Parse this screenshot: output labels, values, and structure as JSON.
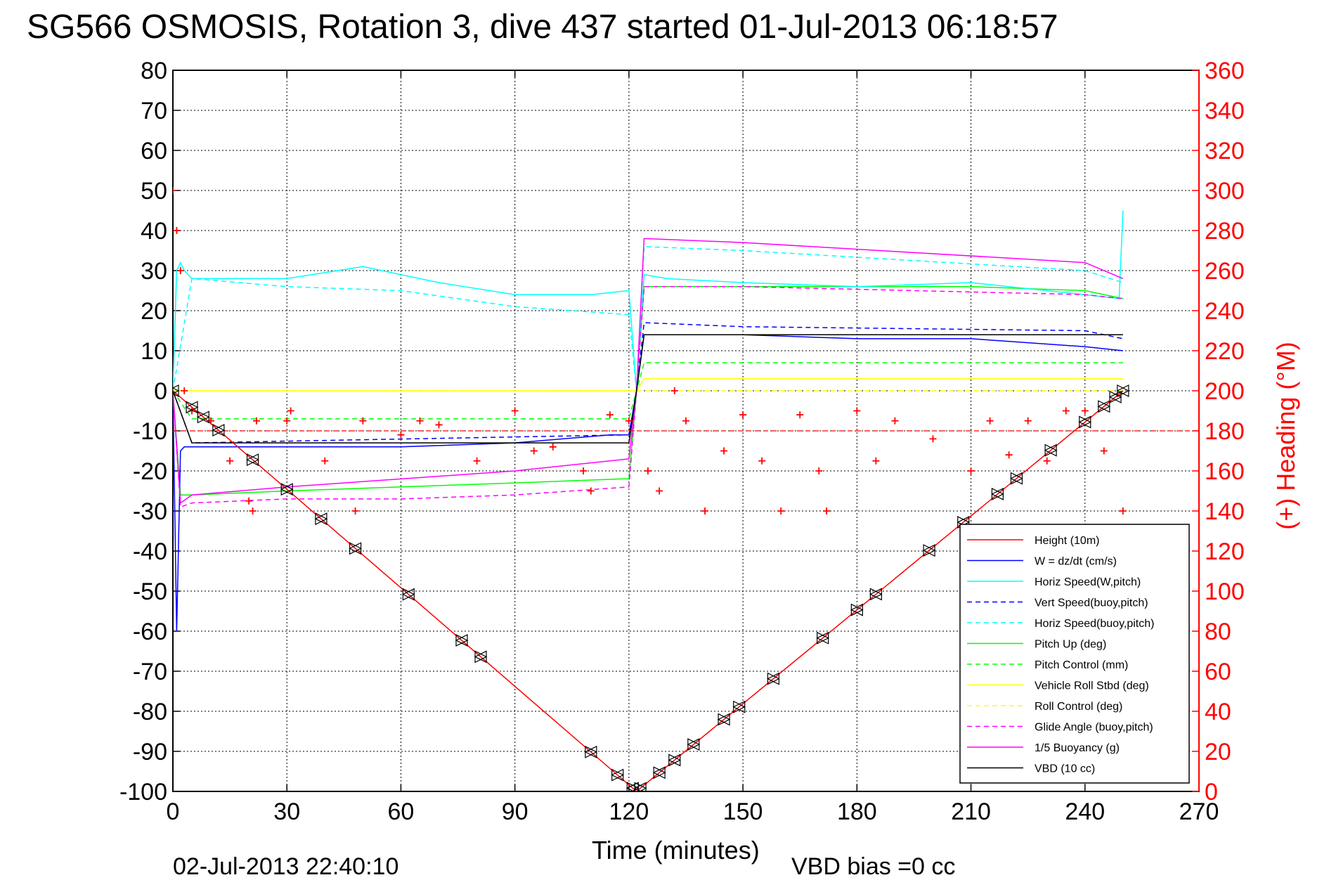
{
  "colors": {
    "height": "#ff0000",
    "w": "#0000ff",
    "horiz": "#00ffff",
    "pitch": "#00ff00",
    "roll": "#ffff00",
    "glide": "#ff00ff",
    "vbd": "#000000",
    "heading": "#ff0000"
  },
  "chart_data": {
    "type": "line",
    "title": "SG566 OSMOSIS, Rotation 3, dive 437 started 01-Jul-2013 06:18:57",
    "xlabel": "Time (minutes)",
    "ylabel": "",
    "y2label": "(+) Heading (°M)",
    "xlim": [
      0,
      270
    ],
    "ylim": [
      -100,
      80
    ],
    "y2lim": [
      0,
      360
    ],
    "xticks": [
      0,
      30,
      60,
      90,
      120,
      150,
      180,
      210,
      240,
      270
    ],
    "yticks": [
      80,
      70,
      60,
      50,
      40,
      30,
      20,
      10,
      0,
      -10,
      -20,
      -30,
      -40,
      -50,
      -60,
      -70,
      -80,
      -90,
      -100
    ],
    "y2ticks": [
      360,
      340,
      320,
      300,
      280,
      260,
      240,
      220,
      200,
      180,
      160,
      140,
      120,
      100,
      80,
      60,
      40,
      20,
      0
    ],
    "grid": true,
    "legend_position": "bottom-right",
    "footer_left": "02-Jul-2013 22:40:10",
    "footer_right": "VBD bias =0 cc",
    "series": [
      {
        "name": "Height (10m)",
        "style": "solid",
        "color_key": "height",
        "x": [
          0,
          122,
          250
        ],
        "y": [
          0,
          -100,
          0
        ]
      },
      {
        "name": "W = dz/dt (cm/s)",
        "style": "solid",
        "color_key": "w",
        "x": [
          0,
          1,
          2,
          3,
          5,
          10,
          30,
          60,
          90,
          115,
          120,
          122,
          124,
          130,
          150,
          180,
          210,
          240,
          250
        ],
        "y": [
          0,
          -60,
          -15,
          -14,
          -14,
          -14,
          -14,
          -14,
          -13,
          -11,
          -11,
          0,
          14,
          14,
          14,
          13,
          13,
          11,
          10
        ]
      },
      {
        "name": "Horiz Speed(W,pitch)",
        "style": "solid",
        "color_key": "horiz",
        "x": [
          0,
          1,
          2,
          3,
          5,
          10,
          30,
          50,
          70,
          90,
          110,
          120,
          122,
          124,
          130,
          150,
          180,
          210,
          240,
          249,
          250
        ],
        "y": [
          0,
          30,
          32,
          30,
          28,
          28,
          28,
          31,
          27,
          24,
          24,
          25,
          0,
          29,
          28,
          27,
          26,
          27,
          24,
          23,
          45
        ]
      },
      {
        "name": "Vert Speed(buoy,pitch)",
        "style": "dashed",
        "color_key": "w",
        "x": [
          0,
          5,
          120,
          122,
          124,
          150,
          240,
          250
        ],
        "y": [
          0,
          -13,
          -11,
          0,
          17,
          16,
          15,
          13
        ]
      },
      {
        "name": "Horiz Speed(buoy,pitch)",
        "style": "dashed",
        "color_key": "horiz",
        "x": [
          0,
          5,
          30,
          60,
          90,
          120,
          122,
          124,
          150,
          240,
          250
        ],
        "y": [
          0,
          28,
          26,
          25,
          21,
          19,
          0,
          36,
          35,
          30,
          27
        ]
      },
      {
        "name": "Pitch Up (deg)",
        "style": "solid",
        "color_key": "pitch",
        "x": [
          0,
          2,
          5,
          30,
          60,
          90,
          118,
          120,
          122,
          124,
          150,
          210,
          240,
          250
        ],
        "y": [
          0,
          -26,
          -26,
          -25,
          -24,
          -23,
          -22,
          -22,
          0,
          26,
          26,
          26,
          25,
          23
        ]
      },
      {
        "name": "Pitch Control (mm)",
        "style": "dashed",
        "color_key": "pitch",
        "x": [
          0,
          5,
          120,
          122,
          124,
          250
        ],
        "y": [
          0,
          -7,
          -7,
          0,
          7,
          7
        ]
      },
      {
        "name": "Vehicle Roll Stbd (deg)",
        "style": "solid",
        "color_key": "roll",
        "x": [
          0,
          5,
          30,
          60,
          90,
          120,
          122,
          124,
          150,
          180,
          210,
          240,
          250
        ],
        "y": [
          0,
          0,
          0,
          0,
          0,
          0,
          0,
          3,
          3,
          3,
          3,
          3,
          3
        ]
      },
      {
        "name": "Roll Control (deg)",
        "style": "dashed",
        "color_key": "roll",
        "x": [
          0,
          120,
          124,
          250
        ],
        "y": [
          0,
          0,
          0,
          0
        ]
      },
      {
        "name": "Glide Angle (buoy,pitch)",
        "style": "dashed",
        "color_key": "glide",
        "x": [
          0,
          2,
          5,
          30,
          60,
          90,
          120,
          122,
          124,
          150,
          240,
          250
        ],
        "y": [
          0,
          -29,
          -28,
          -27,
          -27,
          -26,
          -24,
          0,
          26,
          26,
          24,
          23
        ]
      },
      {
        "name": "1/5 Buoyancy (g)",
        "style": "solid",
        "color_key": "glide",
        "x": [
          0,
          2,
          5,
          30,
          60,
          90,
          120,
          122,
          124,
          150,
          240,
          250
        ],
        "y": [
          0,
          -28,
          -26,
          -24,
          -22,
          -20,
          -17,
          0,
          38,
          37,
          32,
          28
        ]
      },
      {
        "name": "VBD (10 cc)",
        "style": "solid",
        "color_key": "vbd",
        "x": [
          0,
          5,
          120,
          122,
          124,
          250
        ],
        "y": [
          0,
          -13,
          -13,
          0,
          14,
          14
        ]
      }
    ],
    "yo_markers": {
      "x": [
        0,
        5,
        8,
        12,
        21,
        30,
        39,
        48,
        62,
        76,
        81,
        110,
        117,
        121,
        123,
        128,
        132,
        137,
        145,
        149,
        158,
        171,
        180,
        185,
        199,
        208,
        217,
        222,
        231,
        240,
        245,
        248,
        250
      ]
    },
    "heading": {
      "name": "(+) Heading (°M)",
      "mean_line": 180,
      "x": [
        0,
        1,
        2,
        3,
        5,
        10,
        15,
        20,
        21,
        22,
        30,
        31,
        40,
        48,
        50,
        60,
        65,
        70,
        80,
        90,
        95,
        100,
        108,
        110,
        115,
        120,
        125,
        128,
        132,
        135,
        140,
        145,
        150,
        155,
        160,
        165,
        170,
        172,
        180,
        185,
        190,
        200,
        210,
        215,
        220,
        225,
        230,
        235,
        240,
        245,
        250
      ],
      "y": [
        300,
        280,
        260,
        200,
        190,
        185,
        165,
        145,
        140,
        185,
        185,
        190,
        165,
        140,
        185,
        178,
        185,
        183,
        165,
        190,
        170,
        172,
        160,
        150,
        188,
        185,
        160,
        150,
        200,
        185,
        140,
        170,
        188,
        165,
        140,
        188,
        160,
        140,
        190,
        165,
        185,
        176,
        160,
        185,
        168,
        185,
        165,
        190,
        190,
        170,
        140
      ]
    }
  }
}
